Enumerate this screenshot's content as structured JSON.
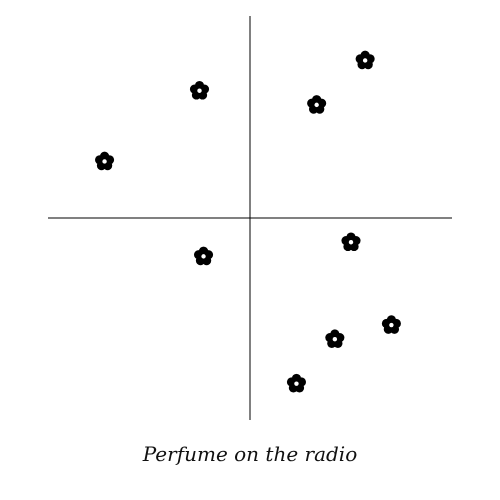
{
  "caption": "Perfume on the radio",
  "colors": {
    "marker": "#000000",
    "axis": "#000000",
    "background": "#ffffff"
  },
  "chart_data": {
    "type": "scatter",
    "marker": "five-petal-flower-icon",
    "grid": false,
    "legend": "none",
    "xlim": [
      -5,
      5
    ],
    "ylim": [
      -5,
      5
    ],
    "points": [
      {
        "x": 2.85,
        "y": 3.9
      },
      {
        "x": -1.25,
        "y": 3.15
      },
      {
        "x": 1.65,
        "y": 2.8
      },
      {
        "x": -3.6,
        "y": 1.4
      },
      {
        "x": 2.5,
        "y": -0.6
      },
      {
        "x": -1.15,
        "y": -0.95
      },
      {
        "x": 3.5,
        "y": -2.65
      },
      {
        "x": 2.1,
        "y": -3.0
      },
      {
        "x": 1.15,
        "y": -4.1
      }
    ]
  }
}
